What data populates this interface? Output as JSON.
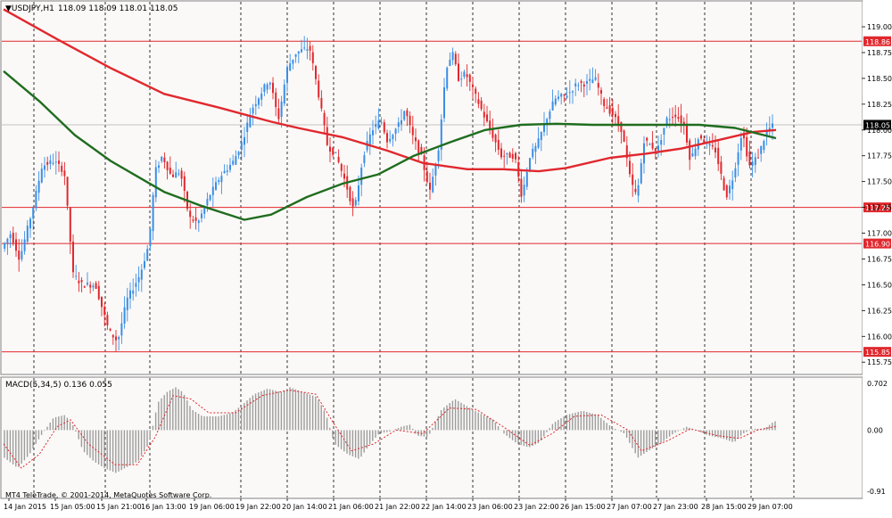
{
  "chart_data": [
    {
      "type": "candlestick",
      "title": "USDJPY,H1",
      "ohlc_label": "118.09 118.09 118.01 118.05",
      "ylim": [
        115.7,
        119.13
      ],
      "grid": true,
      "y_ticks": [
        119.0,
        118.75,
        118.5,
        118.25,
        118.0,
        117.75,
        117.5,
        117.25,
        117.0,
        116.75,
        116.5,
        116.25,
        116.0,
        115.75
      ],
      "y_tick_labels": [
        "119.00",
        "118.75",
        "118.50",
        "118.25",
        "118.00",
        "117.75",
        "117.50",
        "117.25",
        "117.00",
        "116.75",
        "116.50",
        "116.25",
        "116.00",
        "115.75"
      ],
      "horizontal_levels": [
        {
          "value": 118.86,
          "label": "118.86",
          "color": "#e0282e"
        },
        {
          "value": 117.25,
          "label": "117.25",
          "color": "#e0282e"
        },
        {
          "value": 116.9,
          "label": "116.90",
          "color": "#e0282e"
        },
        {
          "value": 115.85,
          "label": "115.85",
          "color": "#e0282e"
        }
      ],
      "current_price": {
        "value": 118.05,
        "label": "118.05"
      },
      "moving_averages": [
        {
          "color": "#e0282e",
          "x": [
            0,
            60,
            120,
            180,
            240,
            300,
            330,
            380,
            430,
            470,
            520,
            560,
            600,
            630,
            680,
            720,
            760,
            800,
            840,
            866
          ],
          "y": [
            119.17,
            118.88,
            118.6,
            118.35,
            118.22,
            118.08,
            118.02,
            117.93,
            117.8,
            117.68,
            117.62,
            117.62,
            117.6,
            117.63,
            117.73,
            117.77,
            117.82,
            117.9,
            117.98,
            118.0
          ]
        },
        {
          "color": "#1f6d1f",
          "x": [
            0,
            40,
            80,
            120,
            160,
            180,
            220,
            270,
            300,
            340,
            380,
            420,
            460,
            500,
            540,
            580,
            620,
            660,
            700,
            740,
            780,
            820,
            866
          ],
          "y": [
            118.57,
            118.28,
            117.95,
            117.7,
            117.5,
            117.4,
            117.27,
            117.13,
            117.18,
            117.35,
            117.48,
            117.57,
            117.75,
            117.88,
            118.0,
            118.05,
            118.06,
            118.05,
            118.05,
            118.05,
            118.05,
            118.02,
            117.92
          ]
        }
      ],
      "price_path": [
        [
          0,
          116.85
        ],
        [
          10,
          117.0
        ],
        [
          20,
          116.75
        ],
        [
          35,
          117.25
        ],
        [
          45,
          117.65
        ],
        [
          58,
          117.7
        ],
        [
          70,
          117.6
        ],
        [
          80,
          116.6
        ],
        [
          90,
          116.5
        ],
        [
          105,
          116.5
        ],
        [
          120,
          116.05
        ],
        [
          130,
          115.95
        ],
        [
          140,
          116.35
        ],
        [
          155,
          116.6
        ],
        [
          165,
          116.9
        ],
        [
          172,
          117.6
        ],
        [
          180,
          117.75
        ],
        [
          190,
          117.55
        ],
        [
          200,
          117.6
        ],
        [
          210,
          117.15
        ],
        [
          220,
          117.1
        ],
        [
          232,
          117.35
        ],
        [
          245,
          117.55
        ],
        [
          260,
          117.7
        ],
        [
          270,
          117.9
        ],
        [
          280,
          118.2
        ],
        [
          290,
          118.35
        ],
        [
          300,
          118.5
        ],
        [
          310,
          118.1
        ],
        [
          320,
          118.6
        ],
        [
          330,
          118.75
        ],
        [
          345,
          118.8
        ],
        [
          355,
          118.35
        ],
        [
          365,
          117.85
        ],
        [
          375,
          117.75
        ],
        [
          385,
          117.5
        ],
        [
          395,
          117.2
        ],
        [
          405,
          117.75
        ],
        [
          415,
          118.0
        ],
        [
          425,
          118.1
        ],
        [
          432,
          117.9
        ],
        [
          445,
          118.05
        ],
        [
          452,
          118.2
        ],
        [
          460,
          117.95
        ],
        [
          470,
          117.75
        ],
        [
          480,
          117.4
        ],
        [
          490,
          117.85
        ],
        [
          498,
          118.6
        ],
        [
          505,
          118.75
        ],
        [
          512,
          118.5
        ],
        [
          520,
          118.55
        ],
        [
          530,
          118.35
        ],
        [
          540,
          118.15
        ],
        [
          550,
          117.95
        ],
        [
          560,
          117.75
        ],
        [
          575,
          117.75
        ],
        [
          583,
          117.35
        ],
        [
          592,
          117.75
        ],
        [
          600,
          117.85
        ],
        [
          610,
          118.1
        ],
        [
          620,
          118.3
        ],
        [
          635,
          118.35
        ],
        [
          645,
          118.45
        ],
        [
          655,
          118.45
        ],
        [
          665,
          118.5
        ],
        [
          675,
          118.25
        ],
        [
          685,
          118.15
        ],
        [
          695,
          118.0
        ],
        [
          705,
          117.5
        ],
        [
          712,
          117.35
        ],
        [
          720,
          117.9
        ],
        [
          735,
          117.8
        ],
        [
          745,
          118.1
        ],
        [
          755,
          118.15
        ],
        [
          765,
          118.05
        ],
        [
          772,
          117.7
        ],
        [
          782,
          117.95
        ],
        [
          792,
          117.85
        ],
        [
          800,
          117.8
        ],
        [
          812,
          117.35
        ],
        [
          820,
          117.55
        ],
        [
          830,
          118.0
        ],
        [
          838,
          117.65
        ],
        [
          848,
          117.75
        ],
        [
          858,
          118.0
        ],
        [
          866,
          118.05
        ]
      ],
      "x_tick_labels": [
        "14 Jan 2015",
        "15 Jan 05:00",
        "15 Jan 21:00",
        "16 Jan 13:00",
        "19 Jan 06:00",
        "19 Jan 22:00",
        "20 Jan 14:00",
        "21 Jan 06:00",
        "21 Jan 22:00",
        "22 Jan 14:00",
        "23 Jan 06:00",
        "23 Jan 22:00",
        "26 Jan 15:00",
        "27 Jan 07:00",
        "27 Jan 23:00",
        "28 Jan 15:00",
        "29 Jan 07:00"
      ]
    },
    {
      "type": "bar",
      "title": "MACD(5,34,5) 0.136 0.055",
      "ylim": [
        -0.91,
        0.702
      ],
      "y_tick_labels": [
        "0.702",
        "0.00",
        "-0.91"
      ],
      "histogram_path": [
        [
          0,
          -0.4
        ],
        [
          15,
          -0.55
        ],
        [
          28,
          -0.35
        ],
        [
          40,
          -0.1
        ],
        [
          55,
          0.18
        ],
        [
          68,
          0.22
        ],
        [
          78,
          0.05
        ],
        [
          88,
          -0.3
        ],
        [
          100,
          -0.45
        ],
        [
          112,
          -0.55
        ],
        [
          125,
          -0.62
        ],
        [
          135,
          -0.55
        ],
        [
          150,
          -0.45
        ],
        [
          162,
          -0.2
        ],
        [
          172,
          0.4
        ],
        [
          182,
          0.55
        ],
        [
          192,
          0.62
        ],
        [
          200,
          0.55
        ],
        [
          210,
          0.3
        ],
        [
          222,
          0.2
        ],
        [
          240,
          0.2
        ],
        [
          255,
          0.25
        ],
        [
          265,
          0.35
        ],
        [
          280,
          0.52
        ],
        [
          295,
          0.6
        ],
        [
          310,
          0.55
        ],
        [
          320,
          0.62
        ],
        [
          335,
          0.55
        ],
        [
          350,
          0.48
        ],
        [
          360,
          0.25
        ],
        [
          370,
          -0.2
        ],
        [
          385,
          -0.35
        ],
        [
          398,
          -0.42
        ],
        [
          410,
          -0.2
        ],
        [
          420,
          -0.05
        ],
        [
          432,
          -0.02
        ],
        [
          445,
          0.05
        ],
        [
          455,
          0.08
        ],
        [
          462,
          -0.08
        ],
        [
          475,
          -0.1
        ],
        [
          490,
          0.3
        ],
        [
          505,
          0.45
        ],
        [
          518,
          0.35
        ],
        [
          532,
          0.25
        ],
        [
          548,
          0.15
        ],
        [
          560,
          -0.05
        ],
        [
          575,
          -0.2
        ],
        [
          588,
          -0.25
        ],
        [
          600,
          -0.18
        ],
        [
          615,
          0.1
        ],
        [
          630,
          0.22
        ],
        [
          648,
          0.28
        ],
        [
          665,
          0.22
        ],
        [
          680,
          0.05
        ],
        [
          695,
          -0.05
        ],
        [
          710,
          -0.4
        ],
        [
          722,
          -0.3
        ],
        [
          735,
          -0.2
        ],
        [
          750,
          -0.05
        ],
        [
          765,
          0.05
        ],
        [
          775,
          0.0
        ],
        [
          790,
          -0.08
        ],
        [
          805,
          -0.12
        ],
        [
          818,
          -0.18
        ],
        [
          828,
          -0.05
        ],
        [
          840,
          0.02
        ],
        [
          852,
          0.02
        ],
        [
          862,
          0.12
        ],
        [
          866,
          0.136
        ]
      ],
      "signal_path": [
        [
          0,
          -0.2
        ],
        [
          20,
          -0.55
        ],
        [
          40,
          -0.35
        ],
        [
          60,
          0.05
        ],
        [
          75,
          0.15
        ],
        [
          95,
          -0.2
        ],
        [
          125,
          -0.5
        ],
        [
          150,
          -0.5
        ],
        [
          170,
          -0.1
        ],
        [
          190,
          0.5
        ],
        [
          210,
          0.45
        ],
        [
          230,
          0.25
        ],
        [
          260,
          0.25
        ],
        [
          290,
          0.5
        ],
        [
          320,
          0.58
        ],
        [
          350,
          0.52
        ],
        [
          370,
          0.1
        ],
        [
          390,
          -0.3
        ],
        [
          415,
          -0.2
        ],
        [
          440,
          0.0
        ],
        [
          470,
          -0.05
        ],
        [
          500,
          0.32
        ],
        [
          530,
          0.3
        ],
        [
          560,
          0.05
        ],
        [
          590,
          -0.22
        ],
        [
          615,
          -0.05
        ],
        [
          640,
          0.2
        ],
        [
          670,
          0.22
        ],
        [
          700,
          0.0
        ],
        [
          715,
          -0.3
        ],
        [
          745,
          -0.15
        ],
        [
          770,
          0.02
        ],
        [
          800,
          -0.08
        ],
        [
          825,
          -0.12
        ],
        [
          845,
          0.0
        ],
        [
          866,
          0.055
        ]
      ],
      "x_tick_labels": []
    }
  ],
  "copyright": "MT4 TeleTrade, © 2001-2014, MetaQuotes Software Corp."
}
